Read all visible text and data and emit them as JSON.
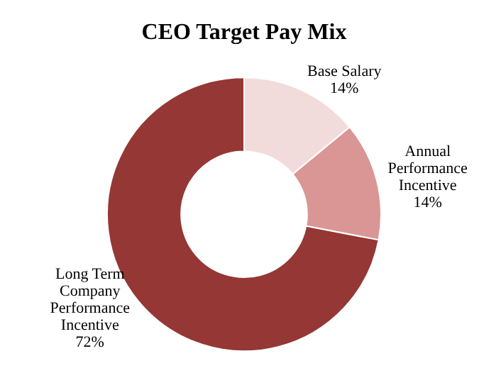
{
  "chart_data": {
    "type": "donut",
    "title": "CEO Target Pay Mix",
    "categories": [
      "Base Salary",
      "Annual Performance Incentive",
      "Long Term Company Performance Incentive"
    ],
    "values": [
      14,
      14,
      72
    ],
    "colors": [
      "#f2dcdb",
      "#d99694",
      "#953735"
    ],
    "value_labels": [
      "14%",
      "14%",
      "72%"
    ],
    "legend": false
  }
}
